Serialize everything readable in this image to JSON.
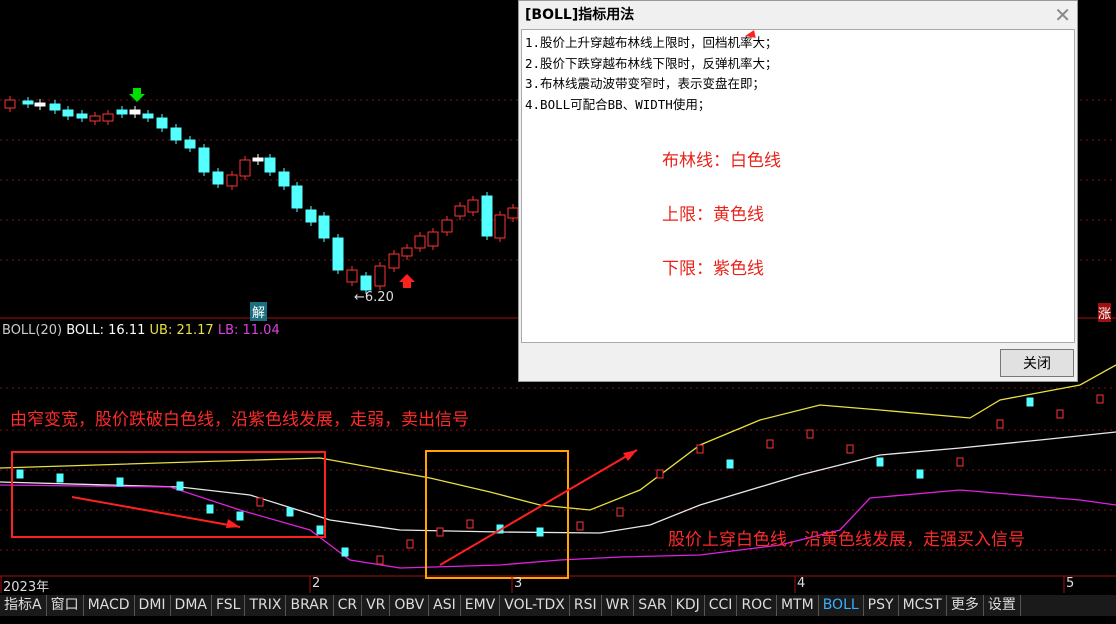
{
  "price_panel": {
    "low_label": "←6.20",
    "marker": "解",
    "right_edge": "涨"
  },
  "indicator_bar": {
    "name": "BOLL(20)",
    "boll": "BOLL: 16.11",
    "ub": "UB: 21.17",
    "lb": "LB: 11.04"
  },
  "annotations": {
    "sell": "由窄变宽，股价跌破白色线，沿紫色线发展，走弱，卖出信号",
    "buy": "股价上穿白色线，沿黄色线发展，走强买入信号"
  },
  "date_axis": [
    "2023年",
    "2",
    "3",
    "4",
    "5"
  ],
  "tabs": {
    "items": [
      "指标A",
      "窗口",
      "MACD",
      "DMI",
      "DMA",
      "FSL",
      "TRIX",
      "BRAR",
      "CR",
      "VR",
      "OBV",
      "ASI",
      "EMV",
      "VOL-TDX",
      "RSI",
      "WR",
      "SAR",
      "KDJ",
      "CCI",
      "ROC",
      "MTM",
      "BOLL",
      "PSY",
      "MCST",
      "更多",
      "设置"
    ],
    "selected": "BOLL"
  },
  "dialog": {
    "title": "[BOLL]指标用法",
    "lines": [
      "1.股价上升穿越布林线上限时，回档机率大；",
      "2.股价下跌穿越布林线下限时，反弹机率大；",
      "3.布林线震动波带变窄时，表示变盘在即；",
      "4.BOLL可配合BB、WIDTH使用；"
    ],
    "notes": [
      "布林线：白色线",
      "上限：黄色线",
      "下限：紫色线"
    ],
    "button": "关闭"
  }
}
